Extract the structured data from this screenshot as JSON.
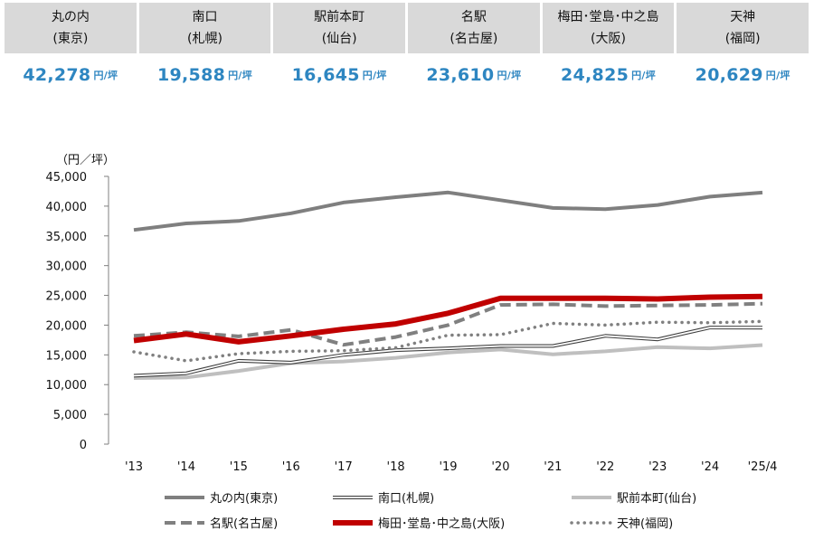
{
  "summary": [
    {
      "area": "丸の内",
      "city": "(東京)",
      "value": "42,278",
      "unit": "円/坪"
    },
    {
      "area": "南口",
      "city": "(札幌)",
      "value": "19,588",
      "unit": "円/坪"
    },
    {
      "area": "駅前本町",
      "city": "(仙台)",
      "value": "16,645",
      "unit": "円/坪"
    },
    {
      "area": "名駅",
      "city": "(名古屋)",
      "value": "23,610",
      "unit": "円/坪"
    },
    {
      "area": "梅田･堂島･中之島",
      "city": "(大阪)",
      "value": "24,825",
      "unit": "円/坪"
    },
    {
      "area": "天神",
      "city": "(福岡)",
      "value": "20,629",
      "unit": "円/坪"
    }
  ],
  "chart_data": {
    "type": "line",
    "ylabel": "（円／坪）",
    "ylim": [
      0,
      45000
    ],
    "yticks": [
      0,
      5000,
      10000,
      15000,
      20000,
      25000,
      30000,
      35000,
      40000,
      45000
    ],
    "ytick_labels": [
      "0",
      "5,000",
      "10,000",
      "15,000",
      "20,000",
      "25,000",
      "30,000",
      "35,000",
      "40,000",
      "45,000"
    ],
    "categories": [
      "'13",
      "'14",
      "'15",
      "'16",
      "'17",
      "'18",
      "'19",
      "'20",
      "'21",
      "'22",
      "'23",
      "'24",
      "'25/4"
    ],
    "grid": false,
    "legend_position": "bottom",
    "series": [
      {
        "name": "丸の内(東京)",
        "style": "thick-solid",
        "color": "#7f7f7f",
        "values": [
          36000,
          37100,
          37500,
          38800,
          40600,
          41500,
          42300,
          41000,
          39700,
          39500,
          40200,
          41600,
          42278
        ]
      },
      {
        "name": "南口(札幌)",
        "style": "double-line",
        "color": "#555555",
        "values": [
          11500,
          11900,
          14000,
          13700,
          15000,
          15800,
          16100,
          16500,
          16500,
          18200,
          17600,
          19600,
          19588
        ]
      },
      {
        "name": "駅前本町(仙台)",
        "style": "thick-light",
        "color": "#bfbfbf",
        "values": [
          11100,
          11200,
          12300,
          13600,
          13900,
          14500,
          15400,
          15900,
          15100,
          15600,
          16300,
          16100,
          16645
        ]
      },
      {
        "name": "名駅(名古屋)",
        "style": "dashed",
        "color": "#808080",
        "values": [
          18200,
          18800,
          18100,
          19200,
          16700,
          18000,
          20000,
          23400,
          23500,
          23200,
          23300,
          23400,
          23610
        ]
      },
      {
        "name": "梅田･堂島･中之島(大阪)",
        "style": "thick-red",
        "color": "#c00000",
        "values": [
          17400,
          18500,
          17200,
          18200,
          19300,
          20200,
          22000,
          24500,
          24500,
          24500,
          24400,
          24700,
          24825
        ]
      },
      {
        "name": "天神(福岡)",
        "style": "dotted",
        "color": "#808080",
        "values": [
          15500,
          14000,
          15200,
          15600,
          15700,
          16200,
          18300,
          18400,
          20300,
          20000,
          20500,
          20400,
          20629
        ]
      }
    ]
  }
}
